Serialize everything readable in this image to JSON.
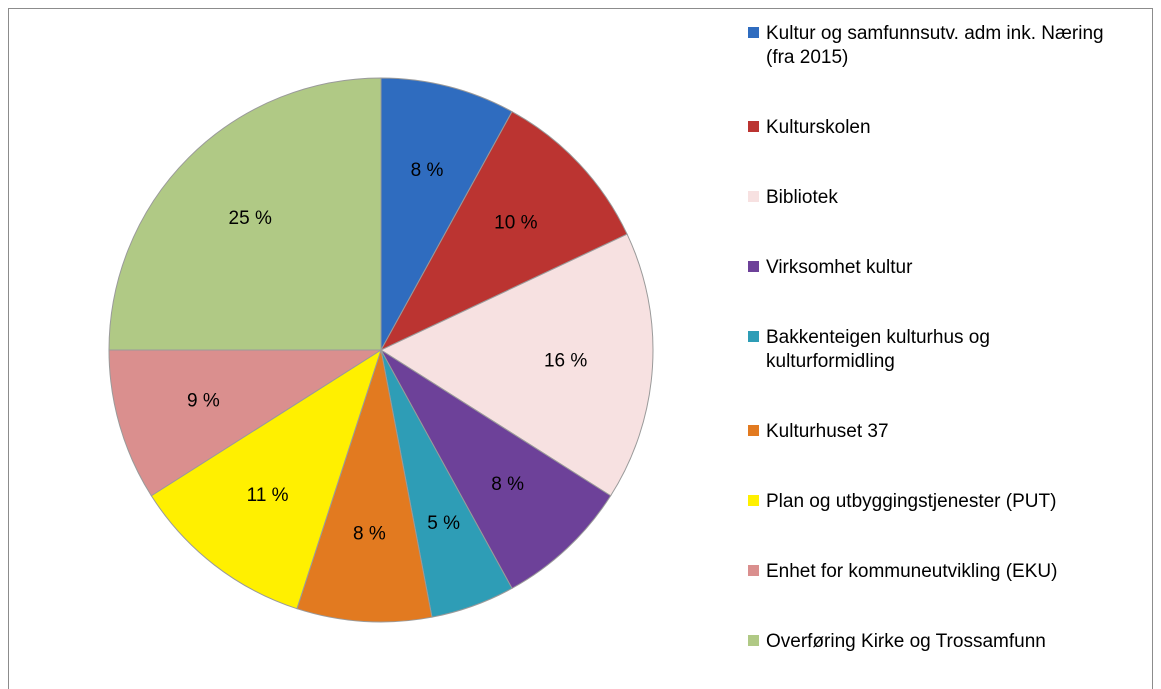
{
  "chart_data": {
    "type": "pie",
    "categories": [
      "Kultur og samfunnsutv. adm ink. Næring (fra 2015)",
      "Kulturskolen",
      "Bibliotek",
      "Virksomhet kultur",
      "Bakkenteigen kulturhus og kulturformidling",
      "Kulturhuset 37",
      "Plan og utbyggingstjenester (PUT)",
      "Enhet for kommuneutvikling (EKU)",
      "Overføring Kirke og Trossamfunn"
    ],
    "values": [
      8,
      10,
      16,
      8,
      5,
      8,
      11,
      9,
      25
    ],
    "value_labels": [
      "8 %",
      "10 %",
      "16 %",
      "8 %",
      "5 %",
      "8 %",
      "11 %",
      "9 %",
      "25 %"
    ],
    "colors": [
      "#2f6cbf",
      "#bb3431",
      "#f7e1e1",
      "#6d4199",
      "#2e9db6",
      "#e27a20",
      "#fff000",
      "#da8f8e",
      "#b0c985"
    ],
    "legend": "right"
  }
}
